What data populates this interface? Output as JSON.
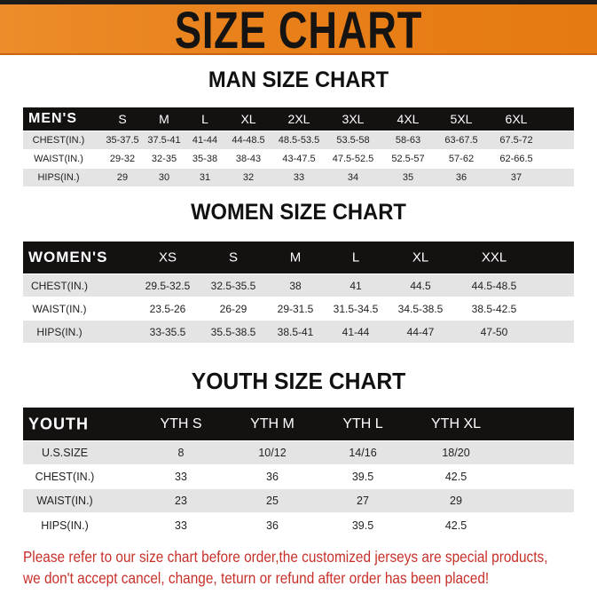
{
  "banner_title": "SIZE CHART",
  "colors": {
    "banner": "#e97f18",
    "header_row": "#141111",
    "stripe": "#e4e4e4",
    "notice": "#c8302a"
  },
  "men": {
    "title": "MAN SIZE CHART",
    "header": [
      "MEN'S",
      "S",
      "M",
      "L",
      "XL",
      "2XL",
      "3XL",
      "4XL",
      "5XL",
      "6XL"
    ],
    "rows": [
      [
        "CHEST(IN.)",
        "35-37.5",
        "37.5-41",
        "41-44",
        "44-48.5",
        "48.5-53.5",
        "53.5-58",
        "58-63",
        "63-67.5",
        "67.5-72"
      ],
      [
        "WAIST(IN.)",
        "29-32",
        "32-35",
        "35-38",
        "38-43",
        "43-47.5",
        "47.5-52.5",
        "52.5-57",
        "57-62",
        "62-66.5"
      ],
      [
        "HIPS(IN.)",
        "29",
        "30",
        "31",
        "32",
        "33",
        "34",
        "35",
        "36",
        "37"
      ]
    ]
  },
  "women": {
    "title": "WOMEN SIZE CHART",
    "header": [
      "WOMEN'S",
      "XS",
      "S",
      "M",
      "L",
      "XL",
      "XXL"
    ],
    "rows": [
      [
        "CHEST(IN.)",
        "29.5-32.5",
        "32.5-35.5",
        "38",
        "41",
        "44.5",
        "44.5-48.5"
      ],
      [
        "WAIST(IN.)",
        "23.5-26",
        "26-29",
        "29-31.5",
        "31.5-34.5",
        "34.5-38.5",
        "38.5-42.5"
      ],
      [
        "HIPS(IN.)",
        "33-35.5",
        "35.5-38.5",
        "38.5-41",
        "41-44",
        "44-47",
        "47-50"
      ]
    ]
  },
  "youth": {
    "title": "YOUTH SIZE CHART",
    "header": [
      "YOUTH",
      "YTH S",
      "YTH M",
      "YTH L",
      "YTH XL"
    ],
    "rows": [
      [
        "U.S.SIZE",
        "8",
        "10/12",
        "14/16",
        "18/20"
      ],
      [
        "CHEST(IN.)",
        "33",
        "36",
        "39.5",
        "42.5"
      ],
      [
        "WAIST(IN.)",
        "23",
        "25",
        "27",
        "29"
      ],
      [
        "HIPS(IN.)",
        "33",
        "36",
        "39.5",
        "42.5"
      ]
    ]
  },
  "notice": [
    "Please refer to our size chart before order,the customized jerseys are special products,",
    "we don't accept cancel, change, teturn or refund after order has been placed!"
  ]
}
